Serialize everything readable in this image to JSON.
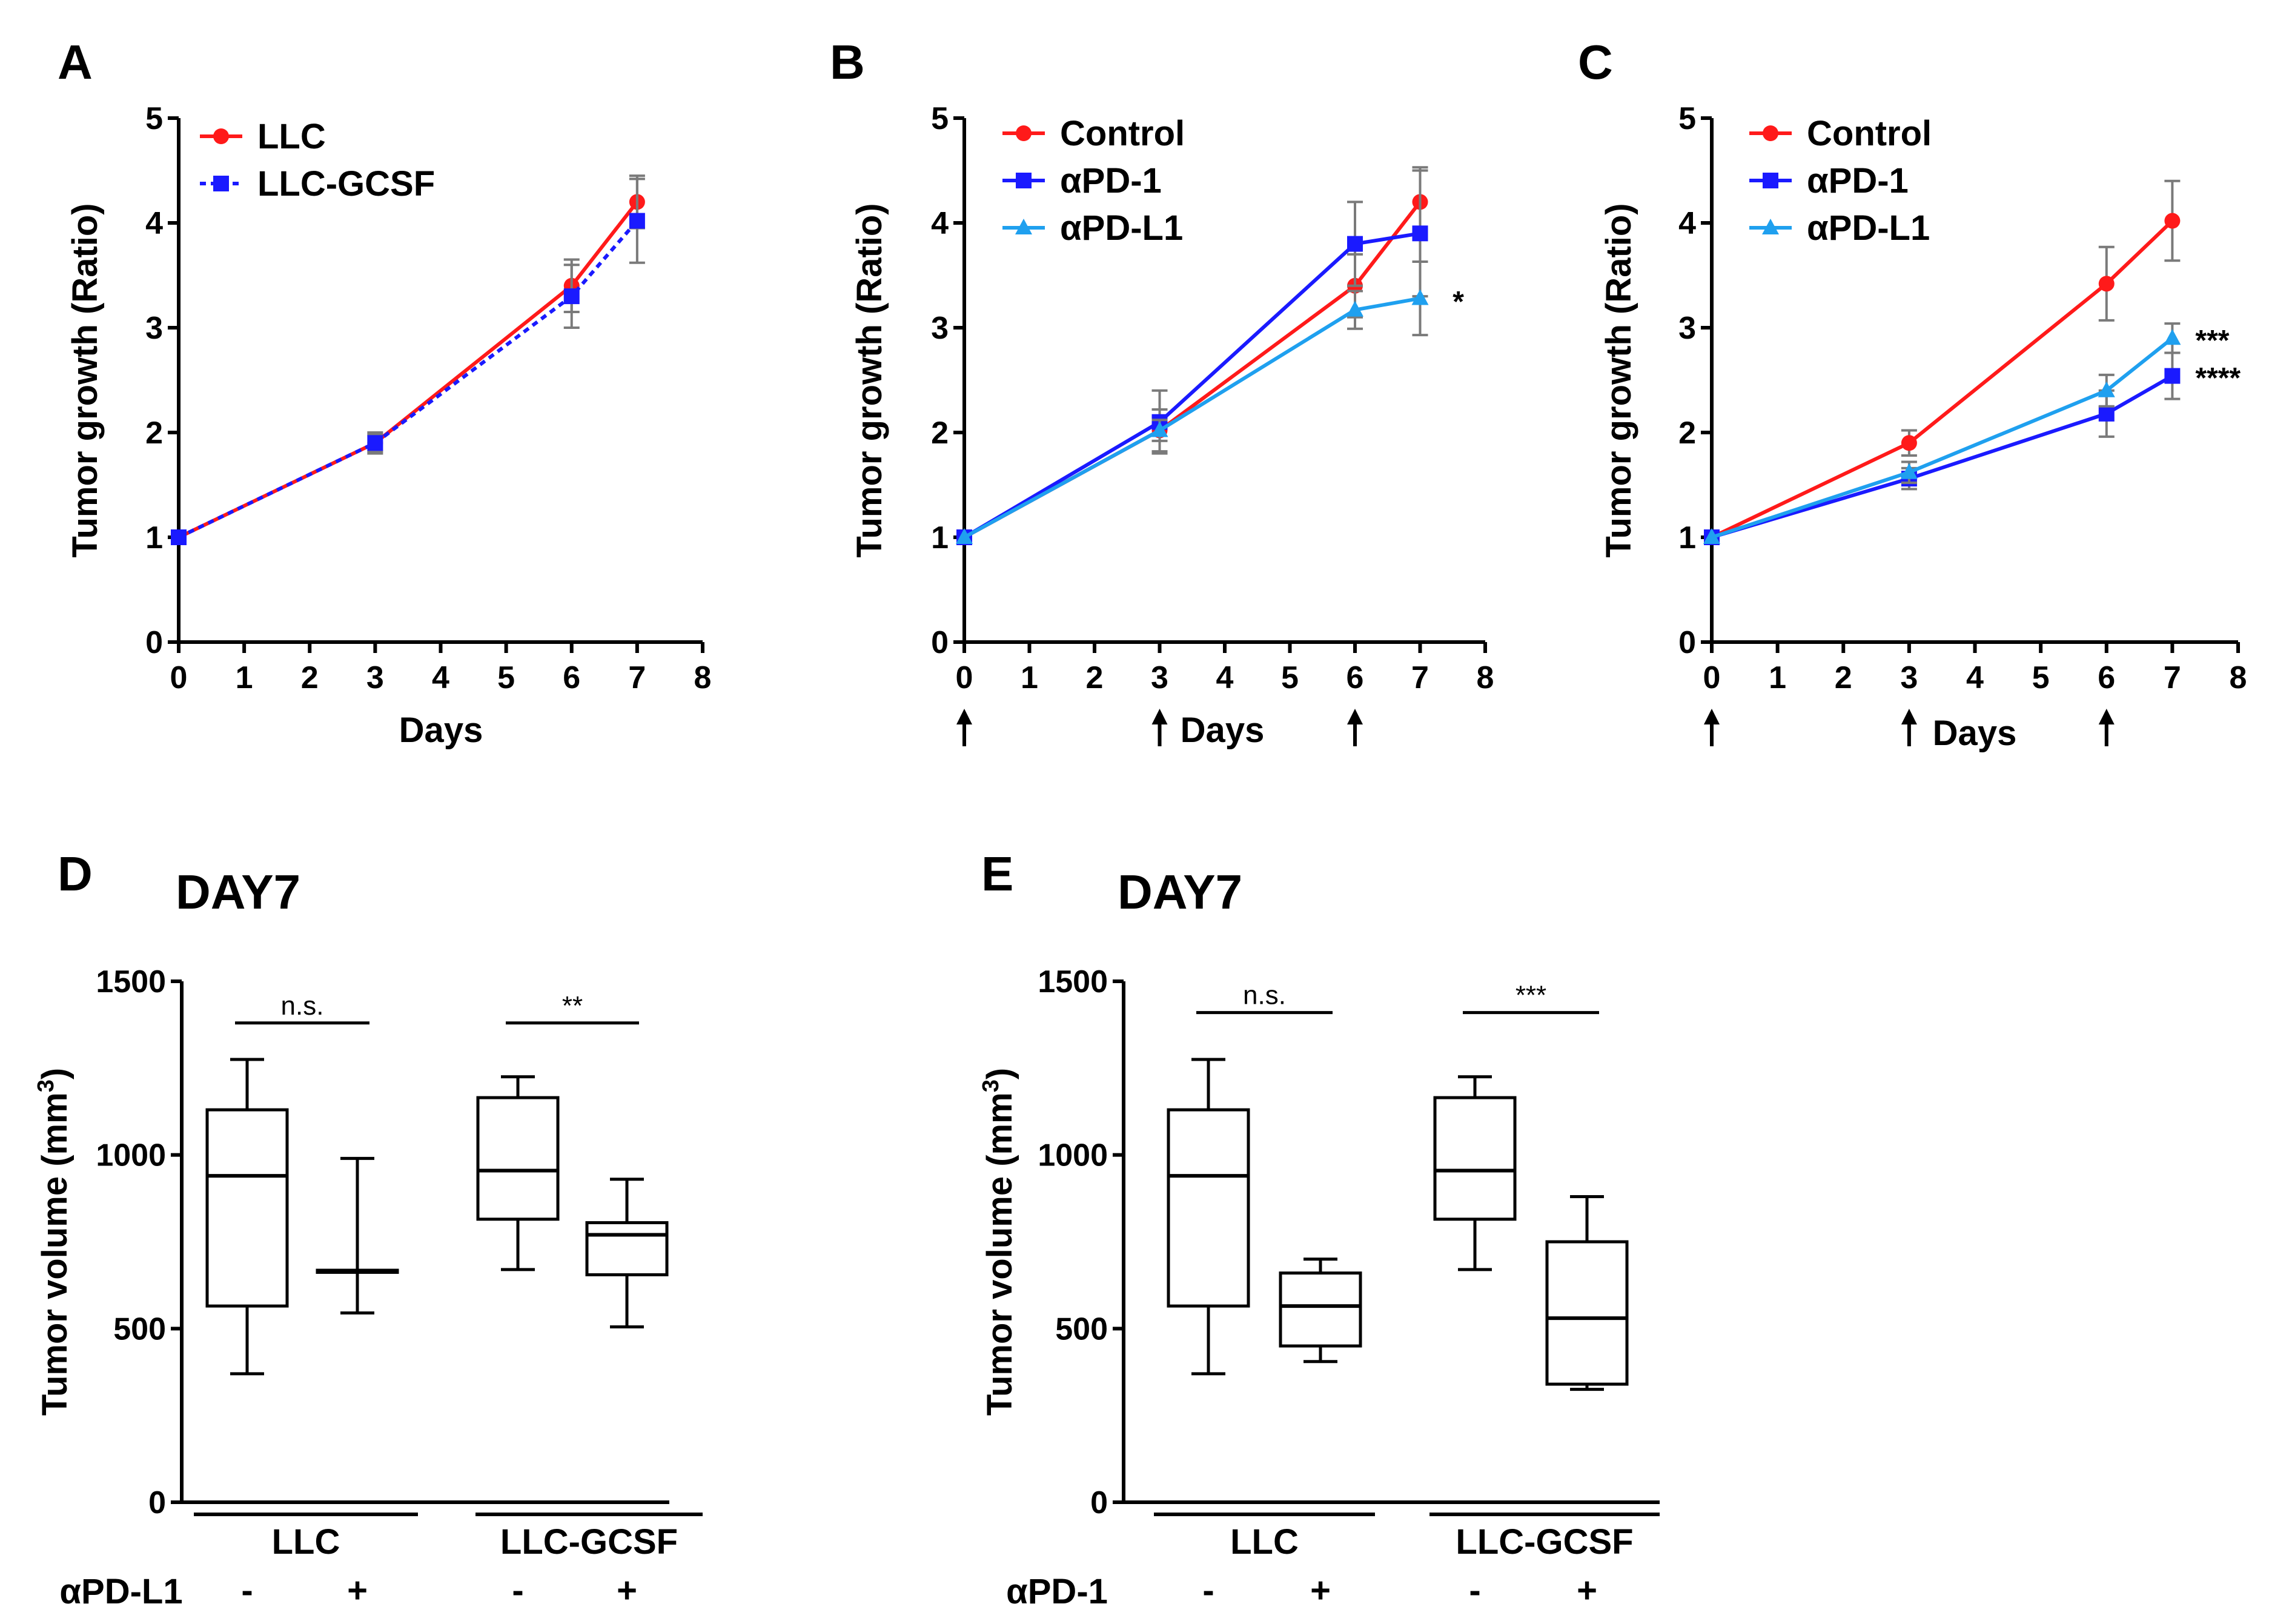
{
  "chart_data": [
    {
      "panel": "A",
      "type": "line",
      "title": "",
      "xlabel": "Days",
      "ylabel": "Tumor growth (Ratio)",
      "xlim": [
        0,
        8
      ],
      "ylim": [
        0,
        5
      ],
      "x_ticks": [
        0,
        1,
        2,
        3,
        4,
        5,
        6,
        7,
        8
      ],
      "y_ticks": [
        0,
        1,
        2,
        3,
        4,
        5
      ],
      "x_markers": [],
      "annotations": [],
      "legend_position": "top-left",
      "series": [
        {
          "name": "LLC",
          "color": "#ff1a1a",
          "marker": "circle",
          "dash": false,
          "x": [
            0,
            3,
            6,
            7
          ],
          "y": [
            1.0,
            1.9,
            3.4,
            4.2
          ],
          "err": [
            0.0,
            0.08,
            0.25,
            0.25
          ]
        },
        {
          "name": "LLC-GCSF",
          "color": "#1a1aff",
          "marker": "square",
          "dash": true,
          "x": [
            0,
            3,
            6,
            7
          ],
          "y": [
            1.0,
            1.9,
            3.3,
            4.02
          ],
          "err": [
            0.0,
            0.1,
            0.3,
            0.4
          ]
        }
      ]
    },
    {
      "panel": "B",
      "type": "line",
      "title": "",
      "xlabel": "Days",
      "ylabel": "Tumor growth (Ratio)",
      "xlim": [
        0,
        8
      ],
      "ylim": [
        0,
        5
      ],
      "x_ticks": [
        0,
        1,
        2,
        3,
        4,
        5,
        6,
        7,
        8
      ],
      "y_ticks": [
        0,
        1,
        2,
        3,
        4,
        5
      ],
      "x_markers": [
        0,
        3,
        6
      ],
      "annotations": [
        {
          "text": "*",
          "x": 7.5,
          "y": 3.25
        }
      ],
      "legend_position": "top-left",
      "series": [
        {
          "name": "Control",
          "color": "#ff1a1a",
          "marker": "circle",
          "dash": false,
          "x": [
            0,
            3,
            6,
            7
          ],
          "y": [
            1.0,
            2.02,
            3.4,
            4.2
          ],
          "err": [
            0.0,
            0.2,
            0.3,
            0.33
          ]
        },
        {
          "name": "αPD-1",
          "color": "#1a1aff",
          "marker": "square",
          "dash": false,
          "x": [
            0,
            3,
            6,
            7
          ],
          "y": [
            1.0,
            2.1,
            3.8,
            3.9
          ],
          "err": [
            0.0,
            0.3,
            0.4,
            0.6
          ]
        },
        {
          "name": "αPD-L1",
          "color": "#1fa0ef",
          "marker": "triangle",
          "dash": false,
          "x": [
            0,
            3,
            6,
            7
          ],
          "y": [
            1.0,
            2.02,
            3.17,
            3.28
          ],
          "err": [
            0.0,
            0.1,
            0.18,
            0.35
          ]
        }
      ]
    },
    {
      "panel": "C",
      "type": "line",
      "title": "",
      "xlabel": "Days",
      "ylabel": "Tumor growth (Ratio)",
      "xlim": [
        0,
        8
      ],
      "ylim": [
        0,
        5
      ],
      "x_ticks": [
        0,
        1,
        2,
        3,
        4,
        5,
        6,
        7,
        8
      ],
      "y_ticks": [
        0,
        1,
        2,
        3,
        4,
        5
      ],
      "x_markers": [
        0,
        3,
        6
      ],
      "annotations": [
        {
          "text": "***",
          "x": 7.35,
          "y": 2.88
        },
        {
          "text": "****",
          "x": 7.35,
          "y": 2.52
        }
      ],
      "legend_position": "top-left",
      "series": [
        {
          "name": "Control",
          "color": "#ff1a1a",
          "marker": "circle",
          "dash": false,
          "x": [
            0,
            3,
            6,
            7
          ],
          "y": [
            1.0,
            1.9,
            3.42,
            4.02
          ],
          "err": [
            0.0,
            0.12,
            0.35,
            0.38
          ]
        },
        {
          "name": "αPD-1",
          "color": "#1a1aff",
          "marker": "square",
          "dash": false,
          "x": [
            0,
            3,
            6,
            7
          ],
          "y": [
            1.0,
            1.56,
            2.18,
            2.54
          ],
          "err": [
            0.0,
            0.1,
            0.22,
            0.22
          ]
        },
        {
          "name": "αPD-L1",
          "color": "#1fa0ef",
          "marker": "triangle",
          "dash": false,
          "x": [
            0,
            3,
            6,
            7
          ],
          "y": [
            1.0,
            1.62,
            2.4,
            2.9
          ],
          "err": [
            0.0,
            0.1,
            0.15,
            0.14
          ]
        }
      ]
    },
    {
      "panel": "D",
      "type": "box",
      "title": "DAY7",
      "xlabel": "",
      "ylabel": "Tumor volume (mm3)",
      "ylabel_main": "Tumor volume (mm",
      "ylabel_sup": "3",
      "ylabel_close": ")",
      "ylim": [
        0,
        1500
      ],
      "y_ticks": [
        0,
        500,
        1000,
        1500
      ],
      "groups": [
        "LLC",
        "LLC-GCSF"
      ],
      "treatment_label": "αPD-L1",
      "treatment_signs": [
        "-",
        "+",
        "-",
        "+"
      ],
      "boxes": [
        {
          "min": 370,
          "q1": 565,
          "median": 940,
          "q3": 1130,
          "max": 1275
        },
        {
          "min": 545,
          "q1": 662,
          "median": 665,
          "q3": 668,
          "max": 990
        },
        {
          "min": 670,
          "q1": 815,
          "median": 955,
          "q3": 1165,
          "max": 1225
        },
        {
          "min": 505,
          "q1": 655,
          "median": 770,
          "q3": 805,
          "max": 930
        }
      ],
      "comparisons": [
        {
          "from": 0,
          "to": 1,
          "label": "n.s.",
          "y": 1380
        },
        {
          "from": 2,
          "to": 3,
          "label": "**",
          "y": 1380
        }
      ]
    },
    {
      "panel": "E",
      "type": "box",
      "title": "DAY7",
      "xlabel": "",
      "ylabel": "Tumor volume (mm3)",
      "ylabel_main": "Tumor volume (mm",
      "ylabel_sup": "3",
      "ylabel_close": ")",
      "ylim": [
        0,
        1500
      ],
      "y_ticks": [
        0,
        500,
        1000,
        1500
      ],
      "groups": [
        "LLC",
        "LLC-GCSF"
      ],
      "treatment_label": "αPD-1",
      "treatment_signs": [
        "-",
        "+",
        "-",
        "+"
      ],
      "boxes": [
        {
          "min": 370,
          "q1": 565,
          "median": 940,
          "q3": 1130,
          "max": 1275
        },
        {
          "min": 405,
          "q1": 450,
          "median": 565,
          "q3": 660,
          "max": 700
        },
        {
          "min": 670,
          "q1": 815,
          "median": 955,
          "q3": 1165,
          "max": 1225
        },
        {
          "min": 325,
          "q1": 340,
          "median": 530,
          "q3": 750,
          "max": 880
        }
      ],
      "comparisons": [
        {
          "from": 0,
          "to": 1,
          "label": "n.s.",
          "y": 1410
        },
        {
          "from": 2,
          "to": 3,
          "label": "***",
          "y": 1410
        }
      ]
    }
  ]
}
